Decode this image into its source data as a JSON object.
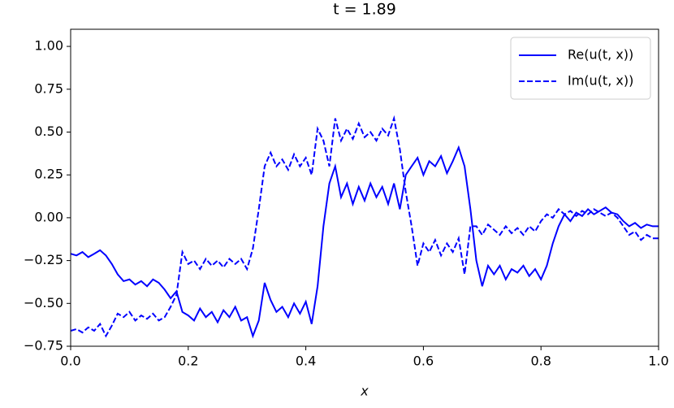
{
  "chart_data": {
    "type": "line",
    "title": "t = 1.89",
    "x_label": "x",
    "x": [
      0,
      0.01,
      0.02,
      0.03,
      0.04,
      0.05,
      0.06,
      0.07,
      0.08,
      0.09,
      0.1,
      0.11,
      0.12,
      0.13,
      0.14,
      0.15,
      0.16,
      0.17,
      0.18,
      0.19,
      0.2,
      0.21,
      0.22,
      0.23,
      0.24,
      0.25,
      0.26,
      0.27,
      0.28,
      0.29,
      0.3,
      0.31,
      0.32,
      0.33,
      0.34,
      0.35,
      0.36,
      0.37,
      0.38,
      0.39,
      0.4,
      0.41,
      0.42,
      0.43,
      0.44,
      0.45,
      0.46,
      0.47,
      0.48,
      0.49,
      0.5,
      0.51,
      0.52,
      0.53,
      0.54,
      0.55,
      0.56,
      0.57,
      0.58,
      0.59,
      0.6,
      0.61,
      0.62,
      0.63,
      0.64,
      0.65,
      0.66,
      0.67,
      0.68,
      0.69,
      0.7,
      0.71,
      0.72,
      0.73,
      0.74,
      0.75,
      0.76,
      0.77,
      0.78,
      0.79,
      0.8,
      0.81,
      0.82,
      0.83,
      0.84,
      0.85,
      0.86,
      0.87,
      0.88,
      0.89,
      0.9,
      0.91,
      0.92,
      0.93,
      0.94,
      0.95,
      0.96,
      0.97,
      0.98,
      0.99,
      1
    ],
    "series": [
      {
        "name": "Re(u(t, x))",
        "color": "#0000ff",
        "linestyle": "solid",
        "values": [
          -0.21,
          -0.22,
          -0.2,
          -0.23,
          -0.21,
          -0.19,
          -0.22,
          -0.27,
          -0.33,
          -0.37,
          -0.36,
          -0.39,
          -0.37,
          -0.4,
          -0.36,
          -0.38,
          -0.42,
          -0.47,
          -0.43,
          -0.55,
          -0.57,
          -0.6,
          -0.53,
          -0.58,
          -0.55,
          -0.61,
          -0.54,
          -0.58,
          -0.52,
          -0.6,
          -0.58,
          -0.69,
          -0.6,
          -0.38,
          -0.48,
          -0.55,
          -0.52,
          -0.58,
          -0.5,
          -0.56,
          -0.49,
          -0.62,
          -0.4,
          -0.05,
          0.2,
          0.3,
          0.12,
          0.2,
          0.08,
          0.18,
          0.1,
          0.2,
          0.12,
          0.18,
          0.08,
          0.2,
          0.05,
          0.25,
          0.3,
          0.35,
          0.25,
          0.33,
          0.3,
          0.36,
          0.26,
          0.33,
          0.41,
          0.3,
          0.05,
          -0.25,
          -0.4,
          -0.28,
          -0.33,
          -0.28,
          -0.36,
          -0.3,
          -0.32,
          -0.28,
          -0.34,
          -0.3,
          -0.36,
          -0.28,
          -0.15,
          -0.05,
          0.02,
          -0.02,
          0.03,
          0.01,
          0.05,
          0.02,
          0.04,
          0.06,
          0.03,
          0.02,
          -0.02,
          -0.05,
          -0.03,
          -0.06,
          -0.04,
          -0.05,
          -0.05
        ]
      },
      {
        "name": "Im(u(t, x))",
        "color": "#0000ff",
        "linestyle": "dashed",
        "values": [
          -0.66,
          -0.65,
          -0.67,
          -0.64,
          -0.66,
          -0.62,
          -0.69,
          -0.63,
          -0.56,
          -0.58,
          -0.55,
          -0.6,
          -0.57,
          -0.59,
          -0.56,
          -0.6,
          -0.58,
          -0.52,
          -0.45,
          -0.2,
          -0.27,
          -0.25,
          -0.3,
          -0.24,
          -0.28,
          -0.25,
          -0.29,
          -0.24,
          -0.27,
          -0.24,
          -0.3,
          -0.18,
          0.05,
          0.3,
          0.38,
          0.3,
          0.34,
          0.28,
          0.37,
          0.3,
          0.35,
          0.25,
          0.52,
          0.45,
          0.3,
          0.58,
          0.45,
          0.52,
          0.46,
          0.55,
          0.47,
          0.5,
          0.45,
          0.52,
          0.48,
          0.58,
          0.4,
          0.15,
          -0.05,
          -0.28,
          -0.15,
          -0.2,
          -0.13,
          -0.22,
          -0.15,
          -0.2,
          -0.12,
          -0.33,
          -0.05,
          -0.05,
          -0.1,
          -0.04,
          -0.07,
          -0.1,
          -0.05,
          -0.09,
          -0.06,
          -0.1,
          -0.05,
          -0.08,
          -0.02,
          0.02,
          0,
          0.05,
          0.02,
          0.04,
          0.01,
          0.04,
          0.02,
          0.05,
          0.03,
          0.01,
          0.03,
          0,
          -0.05,
          -0.1,
          -0.08,
          -0.13,
          -0.1,
          -0.12,
          -0.12
        ]
      }
    ],
    "xlim": [
      0,
      1
    ],
    "ylim": [
      -0.75,
      1.1
    ],
    "xticks": [
      {
        "value": 0,
        "label": "0.0"
      },
      0.2,
      0.4,
      0.6,
      0.8,
      {
        "value": 1,
        "label": "1.0"
      }
    ],
    "yticks": [
      {
        "value": -0.75,
        "label": "−0.75"
      },
      {
        "value": -0.5,
        "label": "−0.50"
      },
      {
        "value": -0.25,
        "label": "−0.25"
      },
      {
        "value": 0,
        "label": "0.00"
      },
      {
        "value": 0.25,
        "label": "0.25"
      },
      {
        "value": 0.5,
        "label": "0.50"
      },
      {
        "value": 0.75,
        "label": "0.75"
      },
      {
        "value": 1,
        "label": "1.00"
      }
    ],
    "grid": false,
    "legend": "upper right"
  }
}
